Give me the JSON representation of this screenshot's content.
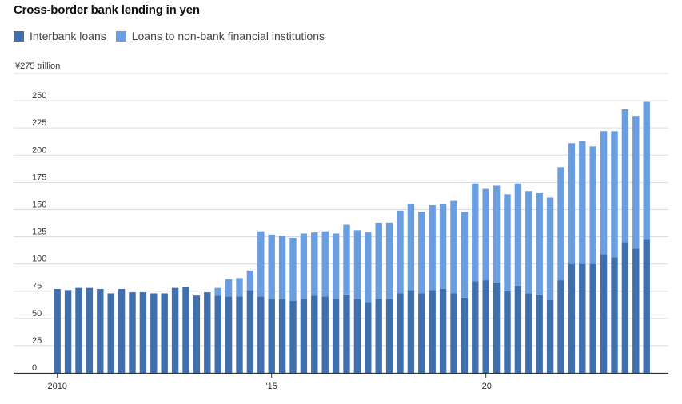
{
  "title": "Cross-border bank lending in yen",
  "legend": {
    "interbank": "Interbank loans",
    "nonbank": "Loans to non-bank financial institutions"
  },
  "colors": {
    "interbank": "#3f70ad",
    "nonbank": "#6a9ee0",
    "grid": "#dcdcdc",
    "axis": "#333333"
  },
  "chart_data": {
    "type": "bar",
    "stacked": true,
    "title": "Cross-border bank lending in yen",
    "unit_label": "¥275 trillion",
    "ylim": [
      0,
      275
    ],
    "y_ticks": [
      0,
      25,
      50,
      75,
      100,
      125,
      150,
      175,
      200,
      225,
      250
    ],
    "x_ticks": [
      {
        "label": "2010",
        "index": 0
      },
      {
        "label": "'15",
        "index": 20
      },
      {
        "label": "'20",
        "index": 40
      }
    ],
    "grid": true,
    "legend_position": "top-left",
    "series": [
      {
        "name": "Interbank loans",
        "values": [
          77,
          76,
          78,
          78,
          77,
          73,
          77,
          74,
          74,
          73,
          73,
          78,
          79,
          71,
          74,
          71,
          70,
          70,
          76,
          70,
          68,
          68,
          66,
          68,
          71,
          70,
          68,
          72,
          68,
          65,
          68,
          68,
          73,
          76,
          73,
          76,
          77,
          73,
          69,
          84,
          85,
          83,
          75,
          80,
          73,
          72,
          67,
          85,
          100,
          100,
          100,
          109,
          106,
          120,
          114,
          123
        ]
      },
      {
        "name": "Loans to non-bank financial institutions",
        "values": [
          0,
          0,
          0,
          0,
          0,
          0,
          0,
          0,
          0,
          0,
          0,
          0,
          0,
          0,
          0,
          7,
          16,
          17,
          18,
          60,
          59,
          58,
          58,
          60,
          58,
          60,
          60,
          64,
          63,
          64,
          70,
          70,
          76,
          79,
          75,
          78,
          78,
          85,
          79,
          90,
          84,
          89,
          89,
          94,
          94,
          93,
          94,
          104,
          111,
          113,
          108,
          113,
          116,
          122,
          122,
          126
        ]
      }
    ]
  }
}
